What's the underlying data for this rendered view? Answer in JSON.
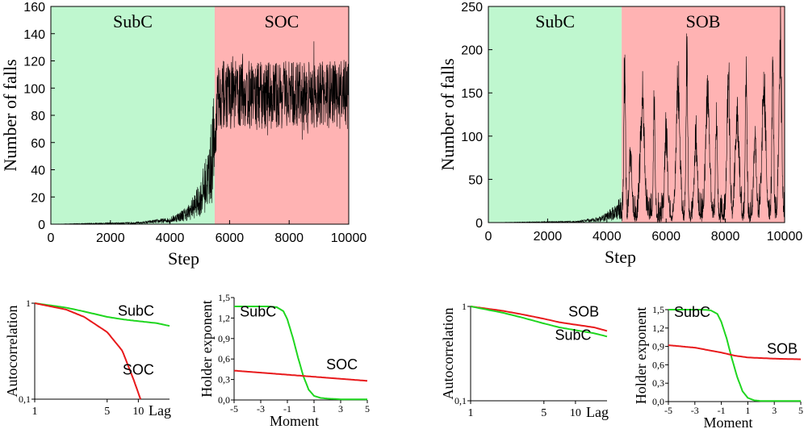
{
  "colors": {
    "subcritical_bg": "#bff7cf",
    "soc_bg": "#ffb3b3",
    "trace": "#000000",
    "soc_curve": "#e8191b",
    "subc_curve": "#1fd61f"
  },
  "chart_data": [
    {
      "id": "ts_soc",
      "type": "line",
      "xlabel": "Step",
      "ylabel": "Number of falls",
      "xlim": [
        0,
        10000
      ],
      "ylim": [
        0,
        160
      ],
      "xticks": [
        "0",
        "2000",
        "4000",
        "6000",
        "8000",
        "10000"
      ],
      "yticks": [
        "0",
        "20",
        "40",
        "60",
        "80",
        "100",
        "120",
        "140",
        "160"
      ],
      "regions": [
        {
          "label": "SubC",
          "from": 0,
          "to": 5500,
          "color": "#bff7cf"
        },
        {
          "label": "SOC",
          "from": 5500,
          "to": 10000,
          "color": "#ffb3b3"
        }
      ],
      "series": [
        {
          "name": "falls",
          "shape": "noisy-plateau",
          "x": [
            0,
            3000,
            4000,
            4600,
            5000,
            5300,
            5500,
            5600,
            10000
          ],
          "y": [
            0,
            1,
            3,
            8,
            18,
            35,
            60,
            95,
            95
          ],
          "band": 25
        }
      ]
    },
    {
      "id": "ts_sob",
      "type": "line",
      "xlabel": "Step",
      "ylabel": "Number of falls",
      "xlim": [
        0,
        10000
      ],
      "ylim": [
        0,
        250
      ],
      "xticks": [
        "0",
        "2000",
        "4000",
        "6000",
        "8000",
        "10000"
      ],
      "yticks": [
        "0",
        "50",
        "100",
        "150",
        "200",
        "250"
      ],
      "regions": [
        {
          "label": "SubC",
          "from": 0,
          "to": 4500,
          "color": "#bff7cf"
        },
        {
          "label": "SOB",
          "from": 4500,
          "to": 10000,
          "color": "#ffb3b3"
        }
      ],
      "series": [
        {
          "name": "falls",
          "shape": "bursts",
          "x": [
            0,
            3000,
            3800,
            4200,
            4500
          ],
          "y": [
            0,
            1,
            4,
            10,
            18
          ],
          "peaks": [
            4600,
            4800,
            5200,
            5600,
            6000,
            6400,
            6700,
            7000,
            7400,
            7700,
            8100,
            8400,
            8700,
            9000,
            9300,
            9600,
            9850
          ],
          "peak_heights": [
            205,
            80,
            160,
            150,
            120,
            175,
            220,
            110,
            165,
            140,
            180,
            125,
            190,
            100,
            170,
            210,
            235
          ]
        }
      ]
    },
    {
      "id": "ac_soc",
      "type": "line",
      "xlabel": "Lag",
      "ylabel": "Autocorrelation",
      "xscale": "log",
      "yscale": "log",
      "xlim": [
        1,
        20
      ],
      "ylim": [
        0.1,
        1
      ],
      "xticks": [
        {
          "v": 1,
          "t": "1"
        },
        {
          "v": 5,
          "t": "5"
        },
        {
          "v": 10,
          "t": "10"
        }
      ],
      "yticks": [
        {
          "v": 0.1,
          "t": "0,1"
        },
        {
          "v": 1,
          "t": "1"
        }
      ],
      "series": [
        {
          "name": "SubC",
          "color": "#1fd61f",
          "x": [
            1,
            2,
            3,
            5,
            7,
            10,
            15,
            20
          ],
          "y": [
            1.0,
            0.9,
            0.82,
            0.72,
            0.68,
            0.65,
            0.62,
            0.58
          ]
        },
        {
          "name": "SOC",
          "color": "#e8191b",
          "x": [
            1,
            2,
            3,
            5,
            7,
            9,
            10.5
          ],
          "y": [
            1.0,
            0.86,
            0.72,
            0.5,
            0.32,
            0.16,
            0.1
          ]
        }
      ],
      "labels": [
        {
          "t": "SubC",
          "x": 9.5,
          "y": 0.74
        },
        {
          "t": "SOC",
          "x": 10,
          "y": 0.18
        }
      ]
    },
    {
      "id": "h_soc",
      "type": "line",
      "xlabel": "Moment",
      "ylabel": "Holder exponent",
      "xlim": [
        -5,
        5
      ],
      "ylim": [
        0,
        1.5
      ],
      "xticks": [
        {
          "v": -5,
          "t": "-5"
        },
        {
          "v": -3,
          "t": "-3"
        },
        {
          "v": -1,
          "t": "-1"
        },
        {
          "v": 1,
          "t": "1"
        },
        {
          "v": 3,
          "t": "3"
        },
        {
          "v": 5,
          "t": "5"
        }
      ],
      "yticks": [
        {
          "v": 0,
          "t": "0,0"
        },
        {
          "v": 0.3,
          "t": "0,3"
        },
        {
          "v": 0.6,
          "t": "0,6"
        },
        {
          "v": 0.9,
          "t": "0,9"
        },
        {
          "v": 1.2,
          "t": "1,2"
        },
        {
          "v": 1.5,
          "t": "1,5"
        }
      ],
      "series": [
        {
          "name": "SubC",
          "color": "#1fd61f",
          "x": [
            -5,
            -2.5,
            -1.8,
            -1.3,
            -1,
            -0.6,
            -0.2,
            0.2,
            0.6,
            1,
            1.5,
            2,
            3,
            5
          ],
          "y": [
            1.37,
            1.37,
            1.36,
            1.3,
            1.18,
            0.92,
            0.62,
            0.35,
            0.15,
            0.06,
            0.03,
            0.02,
            0.01,
            0.01
          ]
        },
        {
          "name": "SOC",
          "color": "#e8191b",
          "x": [
            -5,
            -3,
            -1,
            1,
            3,
            5
          ],
          "y": [
            0.43,
            0.4,
            0.37,
            0.34,
            0.31,
            0.28
          ]
        }
      ],
      "labels": [
        {
          "t": "SubC",
          "x": -3.2,
          "y": 1.22
        },
        {
          "t": "SOC",
          "x": 3.1,
          "y": 0.45
        }
      ]
    },
    {
      "id": "ac_sob",
      "type": "line",
      "xlabel": "Lag",
      "ylabel": "Autocorrelation",
      "xscale": "log",
      "yscale": "log",
      "xlim": [
        1,
        20
      ],
      "ylim": [
        0.1,
        1
      ],
      "xticks": [
        {
          "v": 1,
          "t": "1"
        },
        {
          "v": 5,
          "t": "5"
        },
        {
          "v": 10,
          "t": "10"
        }
      ],
      "yticks": [
        {
          "v": 0.1,
          "t": "0,1"
        },
        {
          "v": 1,
          "t": "1"
        }
      ],
      "series": [
        {
          "name": "SOB",
          "color": "#e8191b",
          "x": [
            1,
            2,
            3,
            5,
            7,
            10,
            15,
            20
          ],
          "y": [
            1.0,
            0.9,
            0.83,
            0.74,
            0.68,
            0.64,
            0.6,
            0.55
          ]
        },
        {
          "name": "SubC",
          "color": "#1fd61f",
          "x": [
            1,
            2,
            3,
            5,
            7,
            10,
            15,
            20
          ],
          "y": [
            1.0,
            0.86,
            0.77,
            0.66,
            0.6,
            0.56,
            0.52,
            0.48
          ]
        }
      ],
      "labels": [
        {
          "t": "SOB",
          "x": 12,
          "y": 0.78
        },
        {
          "t": "SubC",
          "x": 9.5,
          "y": 0.44
        }
      ]
    },
    {
      "id": "h_sob",
      "type": "line",
      "xlabel": "Moment",
      "ylabel": "Holder exponent",
      "xlim": [
        -5,
        5
      ],
      "ylim": [
        0,
        1.5
      ],
      "xticks": [
        {
          "v": -5,
          "t": "-5"
        },
        {
          "v": -3,
          "t": "-3"
        },
        {
          "v": -1,
          "t": "-1"
        },
        {
          "v": 1,
          "t": "1"
        },
        {
          "v": 3,
          "t": "3"
        },
        {
          "v": 5,
          "t": "5"
        }
      ],
      "yticks": [
        {
          "v": 0,
          "t": "0,0"
        },
        {
          "v": 0.3,
          "t": "0,3"
        },
        {
          "v": 0.6,
          "t": "0,6"
        },
        {
          "v": 0.9,
          "t": "0,9"
        },
        {
          "v": 1.2,
          "t": "1,2"
        },
        {
          "v": 1.5,
          "t": "1,5"
        }
      ],
      "series": [
        {
          "name": "SubC",
          "color": "#1fd61f",
          "x": [
            -5,
            -2.5,
            -1.8,
            -1.3,
            -1,
            -0.6,
            -0.2,
            0.2,
            0.6,
            1,
            1.5,
            2,
            3,
            5
          ],
          "y": [
            1.5,
            1.5,
            1.49,
            1.43,
            1.3,
            1.03,
            0.7,
            0.4,
            0.17,
            0.06,
            0.02,
            0.01,
            0.01,
            0.01
          ]
        },
        {
          "name": "SOB",
          "color": "#e8191b",
          "x": [
            -5,
            -3,
            -1,
            0,
            1,
            3,
            5
          ],
          "y": [
            0.92,
            0.88,
            0.8,
            0.75,
            0.72,
            0.7,
            0.69
          ]
        }
      ],
      "labels": [
        {
          "t": "SubC",
          "x": -3.2,
          "y": 1.38
        },
        {
          "t": "SOB",
          "x": 3.6,
          "y": 0.78
        }
      ]
    }
  ]
}
